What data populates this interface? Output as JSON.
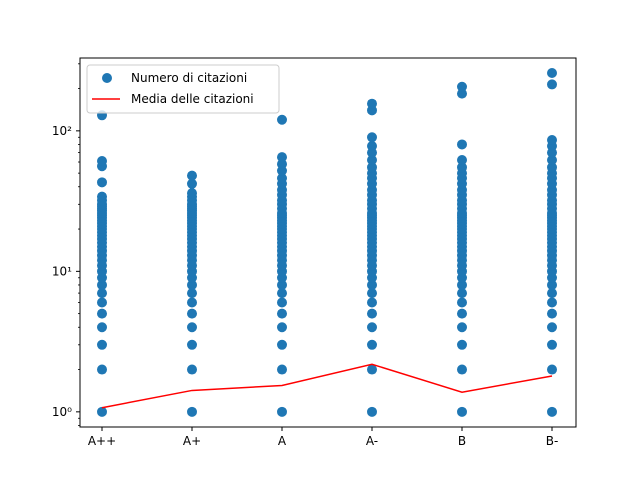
{
  "chart_data": {
    "type": "scatter",
    "categories": [
      "A++",
      "A+",
      "A",
      "A-",
      "B",
      "B-"
    ],
    "y_scale": "log",
    "ylim": [
      0.78,
      330
    ],
    "yticks": [
      {
        "value": 1,
        "label": "10⁰"
      },
      {
        "value": 10,
        "label": "10¹"
      },
      {
        "value": 100,
        "label": "10²"
      }
    ],
    "grid": false,
    "legend_position": "top-left",
    "series": [
      {
        "name": "Numero di citazioni",
        "kind": "scatter",
        "color": "#1f77b4",
        "points": [
          {
            "category": "A++",
            "values": [
              1,
              2,
              3,
              4,
              5,
              6,
              7,
              8,
              9,
              10,
              11,
              12,
              13,
              14,
              15,
              16,
              17,
              18,
              19,
              20,
              21,
              22,
              23,
              24,
              25,
              26,
              27,
              28,
              29,
              30,
              32,
              34,
              43,
              56,
              61,
              129
            ]
          },
          {
            "category": "A+",
            "values": [
              1,
              2,
              3,
              4,
              5,
              6,
              7,
              8,
              9,
              10,
              11,
              12,
              13,
              14,
              15,
              16,
              17,
              18,
              19,
              20,
              21,
              22,
              23,
              24,
              25,
              26,
              27,
              28,
              29,
              30,
              32,
              34,
              36,
              42,
              48
            ]
          },
          {
            "category": "A",
            "values": [
              1,
              2,
              3,
              4,
              5,
              6,
              7,
              8,
              9,
              10,
              11,
              12,
              13,
              14,
              15,
              16,
              17,
              18,
              19,
              20,
              21,
              22,
              23,
              24,
              25,
              26,
              28,
              30,
              32,
              35,
              38,
              42,
              46,
              52,
              58,
              65,
              120
            ]
          },
          {
            "category": "A-",
            "values": [
              1,
              2,
              3,
              4,
              5,
              6,
              7,
              8,
              9,
              10,
              11,
              12,
              13,
              14,
              15,
              16,
              17,
              18,
              19,
              20,
              21,
              22,
              23,
              24,
              25,
              26,
              28,
              30,
              32,
              35,
              38,
              42,
              46,
              50,
              55,
              62,
              70,
              78,
              90,
              140,
              156
            ]
          },
          {
            "category": "B",
            "values": [
              1,
              2,
              3,
              4,
              5,
              6,
              7,
              8,
              9,
              10,
              11,
              12,
              13,
              14,
              15,
              16,
              17,
              18,
              19,
              20,
              21,
              22,
              23,
              24,
              25,
              26,
              28,
              30,
              32,
              35,
              38,
              42,
              46,
              50,
              55,
              62,
              80,
              184,
              206
            ]
          },
          {
            "category": "B-",
            "values": [
              1,
              2,
              3,
              4,
              5,
              6,
              7,
              8,
              9,
              10,
              11,
              12,
              13,
              14,
              15,
              16,
              17,
              18,
              19,
              20,
              21,
              22,
              23,
              24,
              25,
              26,
              28,
              30,
              32,
              35,
              38,
              42,
              46,
              50,
              55,
              62,
              70,
              78,
              86,
              214,
              258
            ]
          }
        ]
      },
      {
        "name": "Media delle citazioni",
        "kind": "line",
        "color": "#ff0000",
        "values": [
          1.07,
          1.42,
          1.54,
          2.18,
          1.38,
          1.8
        ]
      }
    ]
  }
}
